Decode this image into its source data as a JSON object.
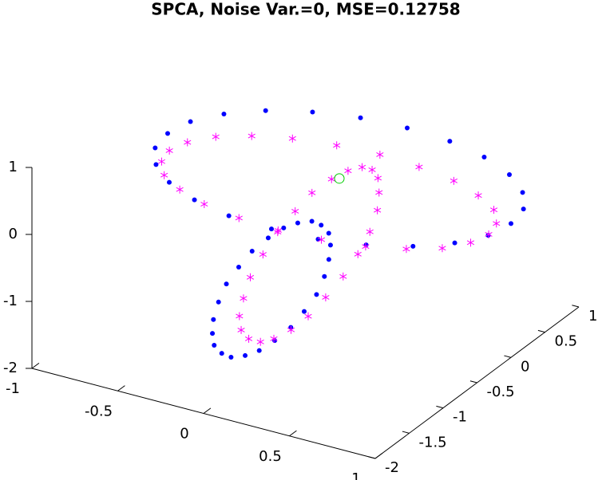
{
  "chart_data": {
    "type": "scatter3d",
    "title": "SPCA, Noise Var.=0, MSE=0.12758",
    "xlim": [
      -1,
      1
    ],
    "xticks": [
      -1,
      -0.5,
      0,
      0.5,
      1
    ],
    "ylim": [
      -2,
      1
    ],
    "yticks": [
      -2,
      -1.5,
      -1,
      -0.5,
      0,
      0.5,
      1
    ],
    "zlim": [
      -2,
      1
    ],
    "zticks": [
      -2,
      -1,
      0,
      1
    ],
    "series": [
      {
        "color": "#0000ff",
        "marker": "dot",
        "x": [
          1,
          0.97,
          0.87,
          0.71,
          0.5,
          0.26,
          0,
          -0.26,
          -0.5,
          -0.71,
          -0.87,
          -0.97,
          -1,
          -0.97,
          -0.87,
          -0.71,
          -0.5,
          -0.26,
          0,
          0.26,
          0.5,
          0.71,
          0.87,
          0.97
        ],
        "y": [
          0,
          0.26,
          0.5,
          0.71,
          0.87,
          0.97,
          1,
          0.97,
          0.87,
          0.71,
          0.5,
          0.26,
          0,
          -0.26,
          -0.5,
          -0.71,
          -0.87,
          -0.97,
          -1,
          -0.97,
          -0.87,
          -0.71,
          -0.5,
          -0.26
        ],
        "z": [
          0,
          0,
          0,
          0,
          0,
          0,
          0,
          0,
          0,
          0,
          0,
          0,
          0,
          0,
          0,
          0,
          0,
          0,
          0,
          0,
          0,
          0,
          0,
          0
        ]
      },
      {
        "color": "#ff00ff",
        "marker": "asterisk",
        "x": [
          0.87,
          0.84,
          0.75,
          0.6,
          0.41,
          0.18,
          -0.06,
          -0.3,
          -0.53,
          -0.72,
          -0.87,
          -0.96,
          -0.99,
          -0.96,
          -0.87,
          -0.72,
          -0.53,
          -0.3,
          -0.06,
          0.18,
          0.41,
          0.6,
          0.75,
          0.84
        ],
        "y": [
          0,
          0.19,
          0.38,
          0.53,
          0.65,
          0.72,
          0.75,
          0.72,
          0.65,
          0.53,
          0.38,
          0.19,
          0,
          -0.19,
          -0.38,
          -0.53,
          -0.65,
          -0.72,
          -0.75,
          -0.72,
          -0.65,
          -0.53,
          -0.38,
          -0.19
        ],
        "z": [
          -0.25,
          -0.25,
          -0.25,
          -0.25,
          -0.25,
          -0.25,
          -0.25,
          -0.25,
          -0.25,
          -0.25,
          -0.25,
          -0.25,
          -0.25,
          -0.25,
          -0.25,
          -0.25,
          -0.25,
          -0.25,
          -0.25,
          -0.25,
          -0.25,
          -0.25,
          -0.25,
          -0.25
        ]
      },
      {
        "color": "#0000ff",
        "marker": "dot",
        "x": [
          0.25,
          0.31,
          0.34,
          0.35,
          0.34,
          0.31,
          0.25,
          0.18,
          0.09,
          0,
          -0.09,
          -0.18,
          -0.25,
          -0.31,
          -0.34,
          -0.35,
          -0.34,
          -0.31,
          -0.25,
          -0.18,
          -0.09,
          0,
          0.09,
          0.18
        ],
        "y": [
          -0.9,
          -0.94,
          -0.99,
          -1.04,
          -1.08,
          -1.12,
          -1.15,
          -1.17,
          -1.18,
          -1.18,
          -1.16,
          -1.14,
          -1.1,
          -1.06,
          -1.01,
          -0.97,
          -0.92,
          -0.88,
          -0.85,
          -0.83,
          -0.82,
          -0.82,
          -0.84,
          -0.86
        ],
        "z": [
          0.15,
          0.1,
          -0.02,
          -0.19,
          -0.42,
          -0.68,
          -0.95,
          -1.22,
          -1.47,
          -1.68,
          -1.83,
          -1.93,
          -1.95,
          -1.9,
          -1.78,
          -1.61,
          -1.38,
          -1.12,
          -0.85,
          -0.58,
          -0.33,
          -0.12,
          0.03,
          0.13
        ]
      },
      {
        "color": "#ff00ff",
        "marker": "asterisk",
        "x": [
          0.44,
          0.49,
          0.52,
          0.53,
          0.51,
          0.46,
          0.39,
          0.3,
          0.21,
          0.11,
          0.01,
          -0.08,
          -0.16,
          -0.22,
          -0.25,
          -0.25,
          -0.23,
          -0.18,
          -0.11,
          -0.02,
          0.07,
          0.18,
          0.28,
          0.37
        ],
        "y": [
          -0.63,
          -0.67,
          -0.73,
          -0.78,
          -0.84,
          -0.89,
          -0.93,
          -0.96,
          -0.99,
          -0.99,
          -0.99,
          -0.96,
          -0.93,
          -0.89,
          -0.84,
          -0.78,
          -0.73,
          -0.67,
          -0.63,
          -0.6,
          -0.58,
          -0.57,
          -0.58,
          -0.6
        ],
        "z": [
          0.9,
          0.84,
          0.69,
          0.47,
          0.18,
          -0.15,
          -0.5,
          -0.85,
          -1.17,
          -1.44,
          -1.64,
          -1.77,
          -1.8,
          -1.74,
          -1.59,
          -1.37,
          -1.08,
          -0.75,
          -0.4,
          -0.05,
          0.27,
          0.54,
          0.74,
          0.87
        ]
      },
      {
        "color": "#00cc00",
        "marker": "circle",
        "x": [
          0
        ],
        "y": [
          0
        ],
        "z": [
          0
        ]
      }
    ]
  }
}
